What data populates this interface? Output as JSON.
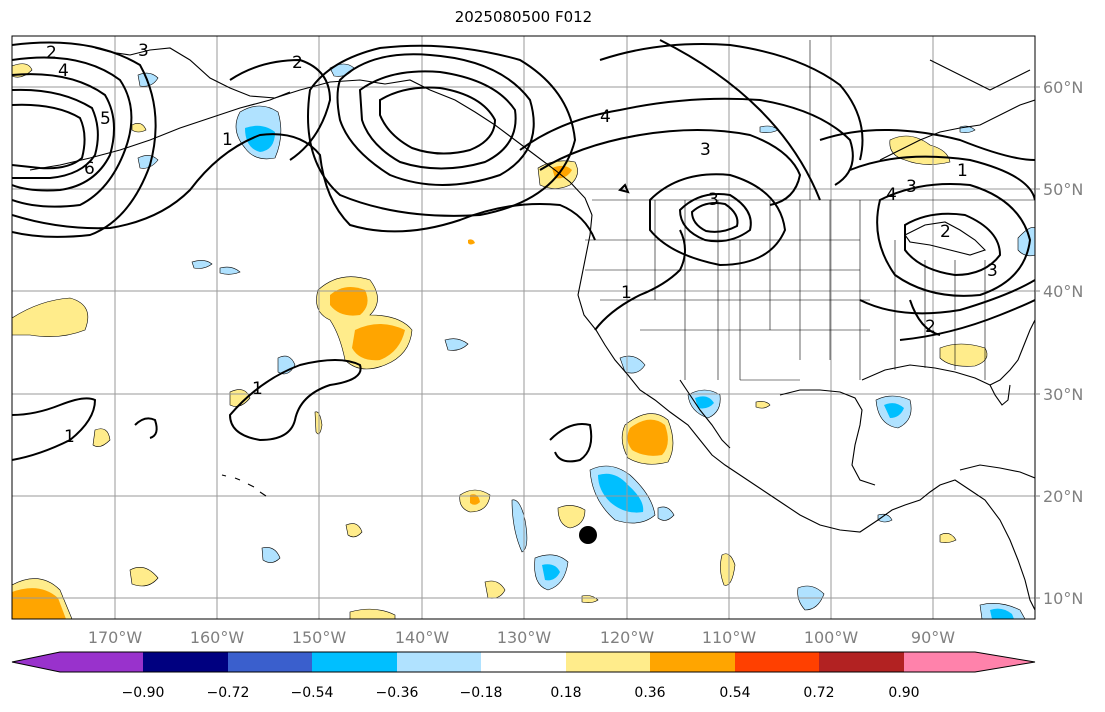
{
  "title": "2025080500 F012",
  "map": {
    "lat_labels": [
      "60°N",
      "50°N",
      "40°N",
      "30°N",
      "20°N",
      "10°N"
    ],
    "lon_labels": [
      "170°W",
      "160°W",
      "150°W",
      "140°W",
      "130°W",
      "120°W",
      "110°W",
      "100°W",
      "90°W"
    ],
    "contour_labels": [
      "2",
      "3",
      "4",
      "5",
      "6",
      "1",
      "2",
      "4",
      "3",
      "3",
      "4",
      "3",
      "1",
      "2",
      "3",
      "1",
      "1",
      "1",
      "2"
    ],
    "marker": "storm-center-dot"
  },
  "colorbar": {
    "colors": [
      "#9932CC",
      "#000080",
      "#3A5FCD",
      "#00BFFF",
      "#B0E2FF",
      "#FFFFFF",
      "#FFEC8B",
      "#FFA500",
      "#FF4000",
      "#B22222",
      "#FF82AB"
    ],
    "tick_labels": [
      "−0.90",
      "−0.72",
      "−0.54",
      "−0.36",
      "−0.18",
      "0.18",
      "0.36",
      "0.54",
      "0.72",
      "0.90"
    ]
  }
}
